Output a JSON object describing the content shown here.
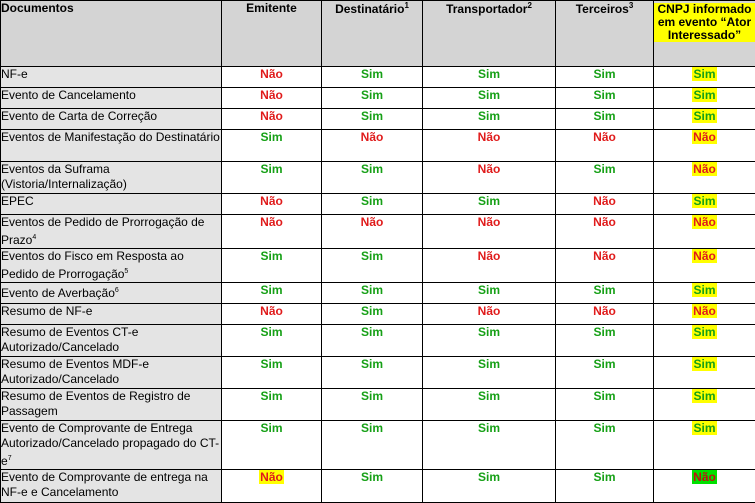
{
  "headers": {
    "documentos": "Documentos",
    "emitente": "Emitente",
    "destinatario": "Destinatário",
    "destinatario_sup": "1",
    "transportador": "Transportador",
    "transportador_sup": "2",
    "terceiros": "Terceiros",
    "terceiros_sup": "3",
    "cnpj": "CNPJ informado em evento “Ator Interessado”"
  },
  "colors": {
    "sim": "#16a016",
    "nao": "#e01b1b",
    "highlight": "#ffff00",
    "highlight_green": "#00e000"
  },
  "rows": [
    {
      "doc": "NF-e",
      "sup": "",
      "vals": [
        "Não",
        "Sim",
        "Sim",
        "Sim",
        "Sim"
      ],
      "hl": ""
    },
    {
      "doc": "Evento de Cancelamento",
      "sup": "",
      "vals": [
        "Não",
        "Sim",
        "Sim",
        "Sim",
        "Sim"
      ],
      "hl": ""
    },
    {
      "doc": "Evento de Carta de Correção",
      "sup": "",
      "vals": [
        "Não",
        "Sim",
        "Sim",
        "Sim",
        "Sim"
      ],
      "hl": ""
    },
    {
      "doc": "Eventos de Manifestação do Destinatário",
      "sup": "",
      "vals": [
        "Sim",
        "Não",
        "Não",
        "Não",
        "Não"
      ],
      "hl": ""
    },
    {
      "doc": "Eventos da Suframa (Vistoria/Internalização)",
      "sup": "",
      "vals": [
        "Sim",
        "Sim",
        "Não",
        "Sim",
        "Não"
      ],
      "hl": ""
    },
    {
      "doc": "EPEC",
      "sup": "",
      "vals": [
        "Não",
        "Sim",
        "Sim",
        "Não",
        "Sim"
      ],
      "hl": ""
    },
    {
      "doc": "Eventos de Pedido de Prorrogação de Prazo",
      "sup": "4",
      "vals": [
        "Não",
        "Não",
        "Não",
        "Não",
        "Não"
      ],
      "hl": ""
    },
    {
      "doc": "Eventos do Fisco em Resposta ao Pedido de Prorrogação",
      "sup": "5",
      "vals": [
        "Sim",
        "Sim",
        "Não",
        "Não",
        "Não"
      ],
      "hl": ""
    },
    {
      "doc": "Evento de Averbação",
      "sup": "6",
      "vals": [
        "Sim",
        "Sim",
        "Sim",
        "Sim",
        "Sim"
      ],
      "hl": ""
    },
    {
      "doc": "Resumo de NF-e",
      "sup": "",
      "vals": [
        "Não",
        "Sim",
        "Não",
        "Não",
        "Não"
      ],
      "hl": ""
    },
    {
      "doc": "Resumo de Eventos CT-e Autorizado/Cancelado",
      "sup": "",
      "vals": [
        "Sim",
        "Sim",
        "Sim",
        "Sim",
        "Sim"
      ],
      "hl": ""
    },
    {
      "doc": "Resumo de Eventos MDF-e Autorizado/Cancelado",
      "sup": "",
      "vals": [
        "Sim",
        "Sim",
        "Sim",
        "Sim",
        "Sim"
      ],
      "hl": ""
    },
    {
      "doc": "Resumo de Eventos de Registro de Passagem",
      "sup": "",
      "vals": [
        "Sim",
        "Sim",
        "Sim",
        "Sim",
        "Sim"
      ],
      "hl": ""
    },
    {
      "doc": "Evento de Comprovante de Entrega Autorizado/Cancelado propagado do CT-e",
      "sup": "7",
      "vals": [
        "Sim",
        "Sim",
        "Sim",
        "Sim",
        "Sim"
      ],
      "hl": ""
    },
    {
      "doc": "Evento de Comprovante de entrega na NF-e e Cancelamento",
      "sup": "",
      "vals": [
        "Não",
        "Sim",
        "Sim",
        "Sim",
        "Não"
      ],
      "hl": "last"
    }
  ]
}
